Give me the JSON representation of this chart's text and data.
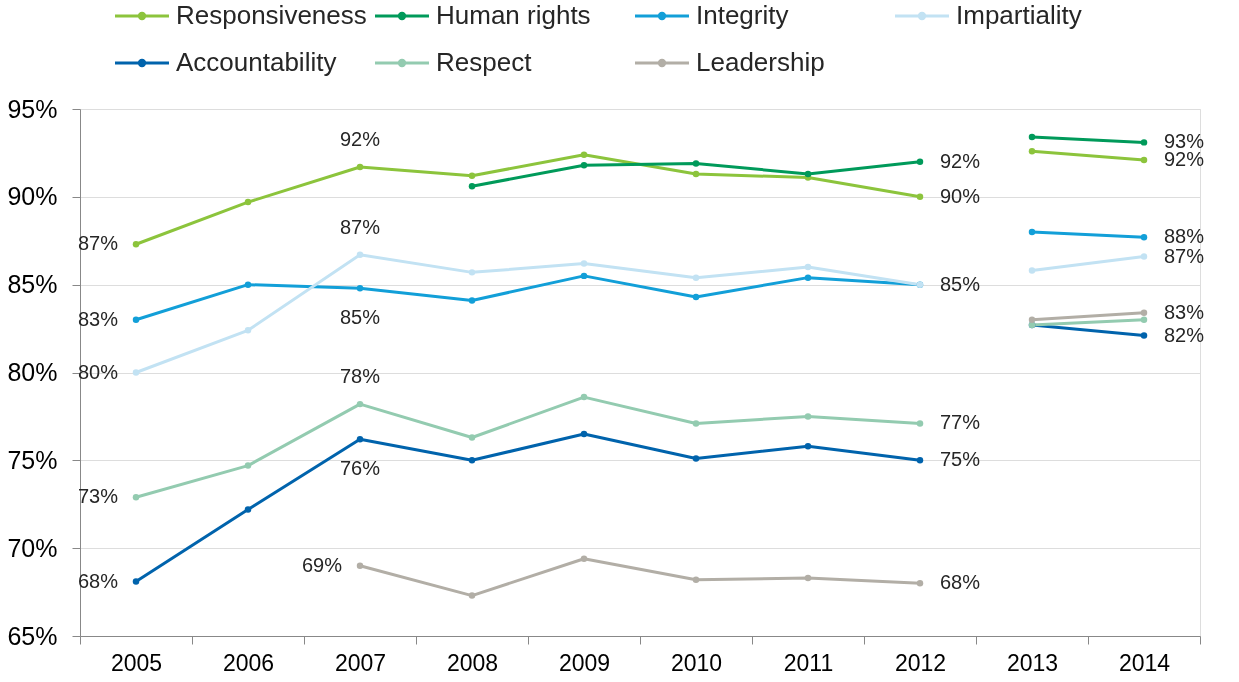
{
  "chart_data": {
    "type": "line",
    "categories": [
      "2005",
      "2006",
      "2007",
      "2008",
      "2009",
      "2010",
      "2011",
      "2012",
      "2013",
      "2014"
    ],
    "ylim": [
      65,
      95
    ],
    "yticks": [
      {
        "value": 65,
        "label": "65%"
      },
      {
        "value": 70,
        "label": "70%"
      },
      {
        "value": 75,
        "label": "75%"
      },
      {
        "value": 80,
        "label": "80%"
      },
      {
        "value": 85,
        "label": "85%"
      },
      {
        "value": 90,
        "label": "90%"
      },
      {
        "value": 95,
        "label": "95%"
      }
    ],
    "grid": "y",
    "legend": "top",
    "marker": "circle",
    "line_style": "solid",
    "series": [
      {
        "name": "Responsiveness",
        "color": "#8cc43c",
        "values": [
          87.3,
          89.7,
          91.7,
          91.2,
          92.4,
          91.3,
          91.1,
          90.0,
          null,
          null
        ],
        "value_labels": [
          "87%",
          null,
          "92%",
          null,
          null,
          null,
          null,
          "90%",
          null,
          null
        ]
      },
      {
        "name": "Human rights",
        "color": "#009a5a",
        "values": [
          null,
          null,
          null,
          90.6,
          91.8,
          91.9,
          91.3,
          92.0,
          null,
          null
        ],
        "value_labels": [
          null,
          null,
          null,
          null,
          null,
          null,
          null,
          "92%",
          null,
          null
        ]
      },
      {
        "name": "Integrity",
        "color": "#129fd8",
        "values": [
          83.0,
          85.0,
          84.8,
          84.1,
          85.5,
          84.3,
          85.4,
          85.0,
          null,
          null
        ],
        "value_labels": [
          "83%",
          null,
          "85%",
          null,
          null,
          null,
          null,
          "85%",
          null,
          null
        ]
      },
      {
        "name": "Impartiality",
        "color": "#c2e2f3",
        "values": [
          80.0,
          82.4,
          86.7,
          85.7,
          86.2,
          85.4,
          86.0,
          85.0,
          null,
          null
        ],
        "value_labels": [
          "80%",
          null,
          "87%",
          null,
          null,
          null,
          null,
          null,
          null,
          null
        ]
      },
      {
        "name": "Accountability",
        "color": "#0063ac",
        "values": [
          68.1,
          72.2,
          76.2,
          75.0,
          76.5,
          75.1,
          75.8,
          75.0,
          null,
          null
        ],
        "value_labels": [
          "68%",
          null,
          "76%",
          null,
          null,
          null,
          null,
          "75%",
          null,
          null
        ]
      },
      {
        "name": "Respect",
        "color": "#93cbb0",
        "values": [
          72.9,
          74.7,
          78.2,
          76.3,
          78.6,
          77.1,
          77.5,
          77.1,
          null,
          null
        ],
        "value_labels": [
          "73%",
          null,
          "78%",
          null,
          null,
          null,
          null,
          "77%",
          null,
          null
        ]
      },
      {
        "name": "Leadership",
        "color": "#b2aea6",
        "values": [
          null,
          null,
          69.0,
          67.3,
          69.4,
          68.2,
          68.3,
          68.0,
          null,
          null
        ],
        "value_labels": [
          null,
          null,
          "69%",
          null,
          null,
          null,
          null,
          "68%",
          null,
          null
        ]
      },
      {
        "color": "#8cc43c",
        "values": [
          null,
          null,
          null,
          null,
          null,
          null,
          null,
          null,
          92.6,
          92.1
        ],
        "value_labels": [
          null,
          null,
          null,
          null,
          null,
          null,
          null,
          null,
          null,
          "92%"
        ]
      },
      {
        "color": "#009a5a",
        "values": [
          null,
          null,
          null,
          null,
          null,
          null,
          null,
          null,
          93.4,
          93.1
        ],
        "value_labels": [
          null,
          null,
          null,
          null,
          null,
          null,
          null,
          null,
          null,
          "93%"
        ]
      },
      {
        "color": "#129fd8",
        "values": [
          null,
          null,
          null,
          null,
          null,
          null,
          null,
          null,
          88.0,
          87.7
        ],
        "value_labels": [
          null,
          null,
          null,
          null,
          null,
          null,
          null,
          null,
          null,
          "88%"
        ]
      },
      {
        "color": "#c2e2f3",
        "values": [
          null,
          null,
          null,
          null,
          null,
          null,
          null,
          null,
          85.8,
          86.6
        ],
        "value_labels": [
          null,
          null,
          null,
          null,
          null,
          null,
          null,
          null,
          null,
          "87%"
        ]
      },
      {
        "color": "#0063ac",
        "values": [
          null,
          null,
          null,
          null,
          null,
          null,
          null,
          null,
          82.7,
          82.1
        ],
        "value_labels": [
          null,
          null,
          null,
          null,
          null,
          null,
          null,
          null,
          null,
          "82%"
        ]
      },
      {
        "color": "#93cbb0",
        "values": [
          null,
          null,
          null,
          null,
          null,
          null,
          null,
          null,
          82.7,
          83.0
        ]
      },
      {
        "color": "#b2aea6",
        "values": [
          null,
          null,
          null,
          null,
          null,
          null,
          null,
          null,
          83.0,
          83.4
        ],
        "value_labels": [
          null,
          null,
          null,
          null,
          null,
          null,
          null,
          null,
          null,
          "83%"
        ]
      }
    ]
  }
}
